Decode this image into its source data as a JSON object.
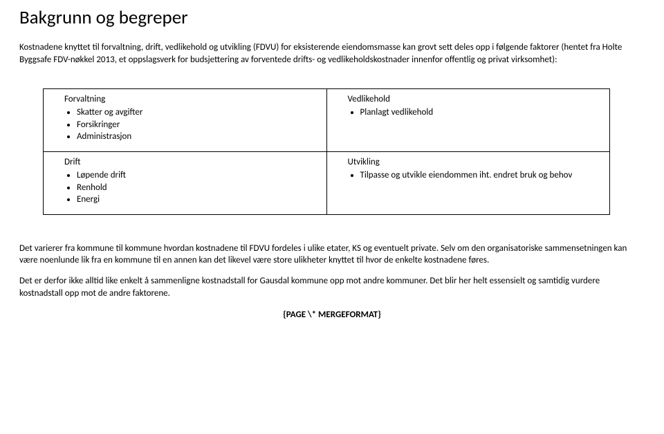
{
  "title": "Bakgrunn og begreper",
  "intro": "Kostnadene knyttet til forvaltning, drift, vedlikehold og utvikling (FDVU) for eksisterende eiendomsmasse kan grovt sett deles opp i følgende faktorer (hentet fra Holte Byggsafe FDV-nøkkel 2013, et oppslagsverk for budsjettering av forventede drifts- og vedlikeholdskostnader innenfor offentlig og privat virksomhet):",
  "table": {
    "r0c0": {
      "heading": "Forvaltning",
      "items": [
        "Skatter og avgifter",
        "Forsikringer",
        "Administrasjon"
      ]
    },
    "r0c1": {
      "heading": "Vedlikehold",
      "items": [
        "Planlagt vedlikehold"
      ]
    },
    "r1c0": {
      "heading": "Drift",
      "items": [
        "Løpende drift",
        "Renhold",
        "Energi"
      ]
    },
    "r1c1": {
      "heading": "Utvikling",
      "items": [
        "Tilpasse og utvikle eiendommen iht. endret bruk og behov"
      ]
    }
  },
  "para1": "Det varierer fra kommune til kommune hvordan kostnadene til FDVU fordeles i ulike etater, KS og eventuelt private. Selv om den organisatoriske sammensetningen kan være noenlunde lik fra en kommune til en annen kan det likevel være store ulikheter knyttet til hvor de enkelte kostnadene føres.",
  "para2": "Det er derfor ikke alltid like enkelt å sammenligne kostnadstall for Gausdal kommune opp mot andre kommuner. Det blir her helt essensielt og samtidig vurdere kostnadstall opp mot de andre faktorene.",
  "footer": "{PAGE  \\* MERGEFORMAT}"
}
